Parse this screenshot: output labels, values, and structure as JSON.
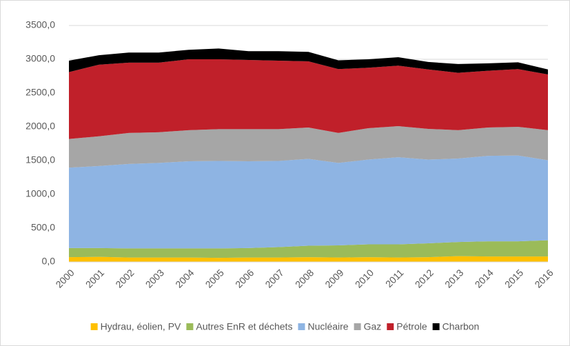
{
  "chart_data": {
    "type": "stacked_area",
    "categories": [
      "2000",
      "2001",
      "2002",
      "2003",
      "2004",
      "2005",
      "2006",
      "2007",
      "2008",
      "2009",
      "2010",
      "2011",
      "2012",
      "2013",
      "2014",
      "2015",
      "2016"
    ],
    "series": [
      {
        "name": "Hydrau, éolien, PV",
        "color": "#ffc000",
        "values": [
          70,
          75,
          65,
          65,
          65,
          60,
          65,
          65,
          70,
          65,
          70,
          65,
          70,
          85,
          80,
          80,
          80
        ]
      },
      {
        "name": "Autres EnR et déchets",
        "color": "#9bbb59",
        "values": [
          135,
          130,
          135,
          135,
          135,
          140,
          140,
          155,
          170,
          180,
          190,
          195,
          205,
          210,
          225,
          225,
          240
        ]
      },
      {
        "name": "Nucléaire",
        "color": "#8eb4e3",
        "values": [
          1190,
          1215,
          1250,
          1265,
          1290,
          1295,
          1285,
          1275,
          1285,
          1220,
          1255,
          1290,
          1240,
          1235,
          1265,
          1270,
          1185
        ]
      },
      {
        "name": "Gaz",
        "color": "#a6a6a6",
        "values": [
          425,
          440,
          460,
          455,
          460,
          470,
          475,
          470,
          465,
          445,
          465,
          460,
          455,
          420,
          420,
          425,
          445
        ]
      },
      {
        "name": "Pétrole",
        "color": "#c0202a",
        "values": [
          990,
          1060,
          1040,
          1030,
          1050,
          1035,
          1025,
          1015,
          980,
          945,
          895,
          895,
          880,
          850,
          840,
          855,
          825
        ]
      },
      {
        "name": "Charbon",
        "color": "#000000",
        "values": [
          170,
          140,
          150,
          150,
          140,
          160,
          130,
          140,
          140,
          130,
          125,
          125,
          110,
          130,
          110,
          100,
          75
        ]
      }
    ],
    "ylim": [
      0,
      3500
    ],
    "yticks": [
      {
        "value": 0,
        "label": "0,0"
      },
      {
        "value": 500,
        "label": "500,0"
      },
      {
        "value": 1000,
        "label": "1000,0"
      },
      {
        "value": 1500,
        "label": "1500,0"
      },
      {
        "value": 2000,
        "label": "2000,0"
      },
      {
        "value": 2500,
        "label": "2500,0"
      },
      {
        "value": 3000,
        "label": "3000,0"
      },
      {
        "value": 3500,
        "label": "3500,0"
      }
    ],
    "grid": true
  }
}
